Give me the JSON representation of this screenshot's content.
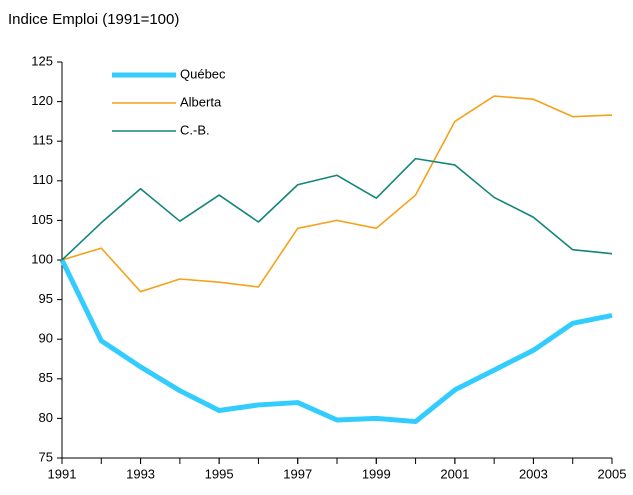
{
  "chart_data": {
    "type": "line",
    "title": "Indice Emploi (1991=100)",
    "x": [
      1991,
      1992,
      1993,
      1994,
      1995,
      1996,
      1997,
      1998,
      1999,
      2000,
      2001,
      2002,
      2003,
      2004,
      2005
    ],
    "series": [
      {
        "name": "Québec",
        "color": "#33ccff",
        "values": [
          100,
          89.8,
          86.5,
          83.5,
          81,
          81.7,
          82,
          79.8,
          80,
          79.6,
          83.6,
          86.1,
          88.6,
          92,
          93
        ]
      },
      {
        "name": "Alberta",
        "color": "#f5a21b",
        "values": [
          100,
          101.5,
          96,
          97.6,
          97.2,
          96.6,
          104,
          105,
          104,
          108.2,
          117.5,
          120.7,
          120.3,
          118.1,
          118.3
        ]
      },
      {
        "name": "C.-B.",
        "color": "#13857d",
        "values": [
          100,
          104.7,
          109,
          104.9,
          108.2,
          104.8,
          109.5,
          110.7,
          107.8,
          112.8,
          112,
          107.9,
          105.4,
          101.3,
          100.8
        ]
      }
    ],
    "xlim": [
      1991,
      2005
    ],
    "xticks": [
      1991,
      1993,
      1995,
      1997,
      1999,
      2001,
      2003,
      2005
    ],
    "ylim": [
      75,
      125
    ],
    "yticks": [
      75,
      80,
      85,
      90,
      95,
      100,
      105,
      110,
      115,
      120,
      125
    ],
    "grid": false
  }
}
